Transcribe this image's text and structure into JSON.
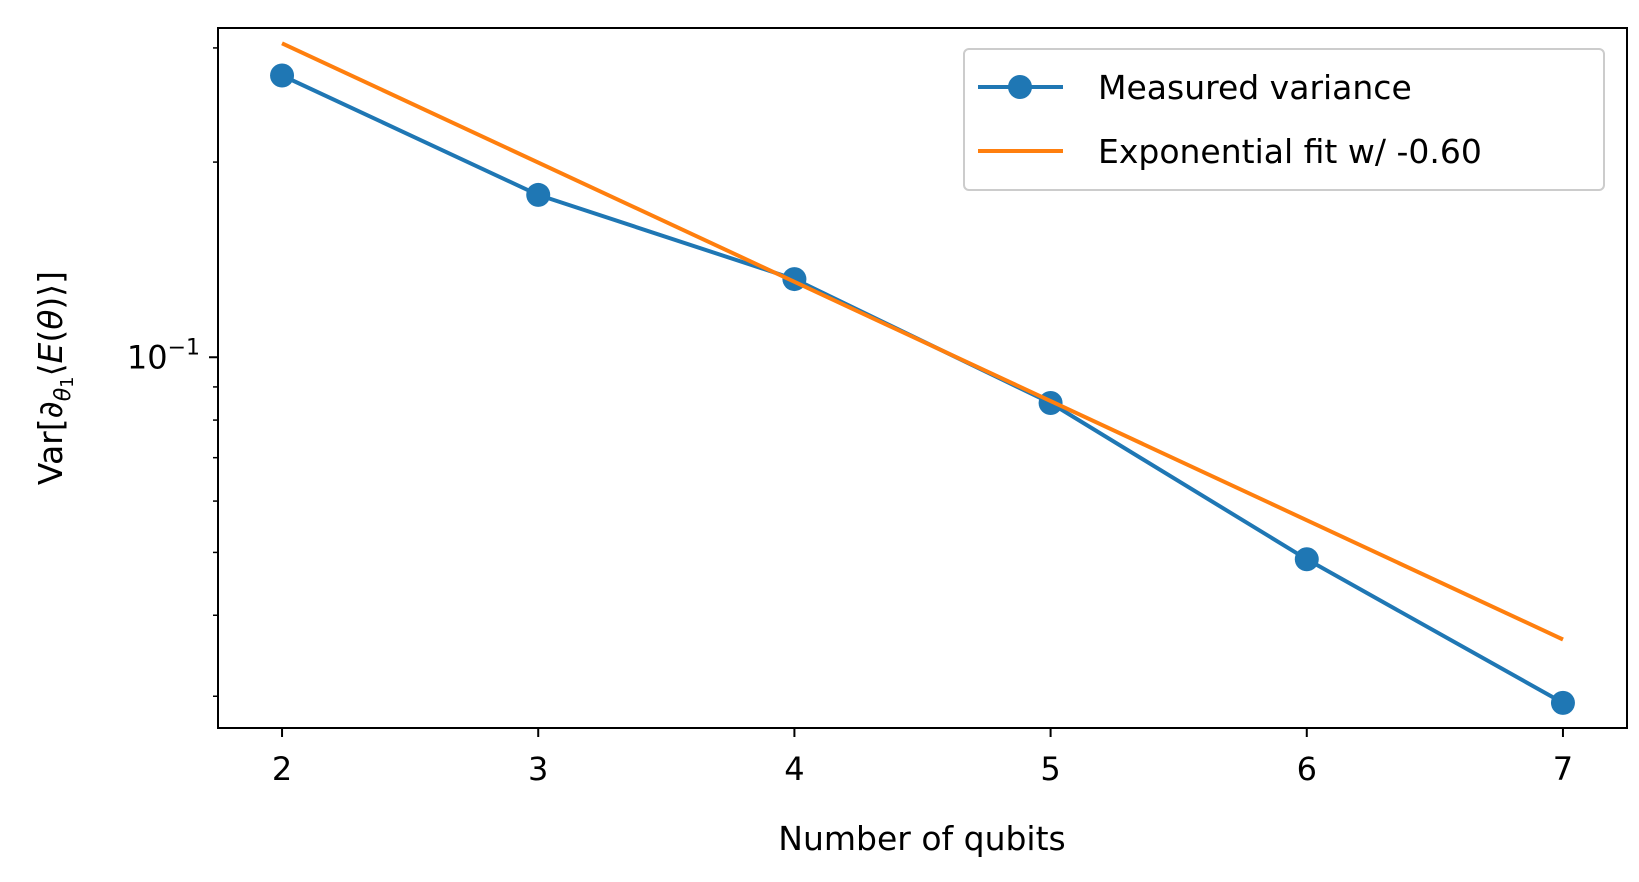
{
  "chart_data": {
    "type": "line",
    "xlabel": "Number of qubits",
    "ylabel": {
      "prefix": "Var[",
      "partial": "∂",
      "sub_theta": "θ",
      "sub_one": "1",
      "angle_open": "⟨",
      "E": "E",
      "paren_open": "(",
      "theta": "θ",
      "paren_close": ")",
      "angle_close": "⟩",
      "suffix": "]"
    },
    "yscale": "log",
    "xlim": [
      1.75,
      7.25
    ],
    "ylim": [
      0.0268,
      0.322
    ],
    "x_ticks": [
      2,
      3,
      4,
      5,
      6,
      7
    ],
    "x_tick_labels": [
      "2",
      "3",
      "4",
      "5",
      "6",
      "7"
    ],
    "y_major_ticks": [
      {
        "value": 0.1,
        "base": "10",
        "exponent": "−1"
      }
    ],
    "y_minor_ticks": [
      0.03,
      0.04,
      0.05,
      0.06,
      0.07,
      0.08,
      0.09,
      0.2,
      0.3
    ],
    "grid": false,
    "legend_position": "top-right",
    "series": [
      {
        "name": "Measured variance",
        "color": "#1f77b4",
        "marker": "circle",
        "x": [
          2,
          3,
          4,
          5,
          6,
          7
        ],
        "y": [
          0.272,
          0.178,
          0.132,
          0.085,
          0.0488,
          0.0293
        ]
      },
      {
        "name": "Exponential fit w/ -0.60",
        "color": "#ff7f0e",
        "marker": "none",
        "x": [
          2,
          7
        ],
        "y": [
          0.305,
          0.0367
        ]
      }
    ]
  }
}
